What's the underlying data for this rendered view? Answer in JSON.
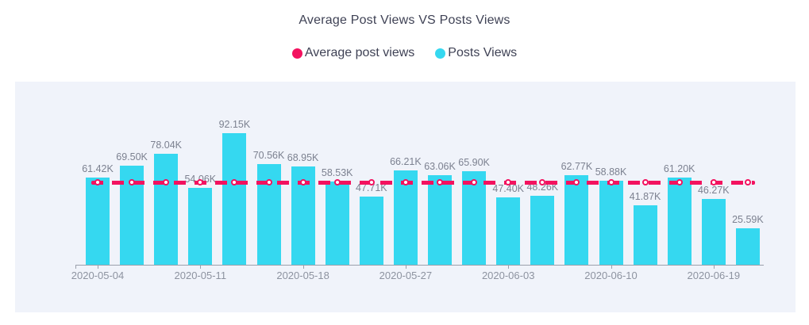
{
  "colors": {
    "bar": "#35d8f0",
    "average_line": "#f3125f",
    "panel_background": "#f0f3fa",
    "page_background": "#ffffff",
    "title_text": "#3f4255",
    "value_label_text": "#7c8190",
    "axis_label_text": "#8d93a0",
    "axis_line": "#9aa0ab"
  },
  "chart_data": {
    "type": "bar",
    "title": "Average Post Views VS Posts Views",
    "legend_position": "top-center",
    "grid": false,
    "legend": [
      {
        "name": "Average post views",
        "color": "#f3125f",
        "marker": "circle",
        "series_type": "line"
      },
      {
        "name": "Posts Views",
        "color": "#35d8f0",
        "marker": "circle",
        "series_type": "bar"
      }
    ],
    "x_axis": {
      "type": "category",
      "tick_labels": [
        "2020-05-04",
        "2020-05-11",
        "2020-05-18",
        "2020-05-27",
        "2020-06-03",
        "2020-06-10",
        "2020-06-19"
      ],
      "labeled_bar_indices": [
        0,
        3,
        6,
        9,
        12,
        15,
        18
      ]
    },
    "y_axis": {
      "visible": false,
      "unit": "K",
      "implied_max_k": 92.15
    },
    "series": [
      {
        "name": "Posts Views",
        "type": "bar",
        "color": "#35d8f0",
        "values_k": [
          61.42,
          69.5,
          78.04,
          54.06,
          92.15,
          70.56,
          68.95,
          58.53,
          47.71,
          66.21,
          63.06,
          65.9,
          47.4,
          48.26,
          62.77,
          58.88,
          41.87,
          61.2,
          46.27,
          25.59
        ],
        "data_labels": [
          "61.42K",
          "69.50K",
          "78.04K",
          "54.06K",
          "92.15K",
          "70.56K",
          "68.95K",
          "58.53K",
          "47.71K",
          "66.21K",
          "63.06K",
          "65.90K",
          "47.40K",
          "48.26K",
          "62.77K",
          "58.88K",
          "41.87K",
          "61.20K",
          "46.27K",
          "25.59K"
        ]
      },
      {
        "name": "Average post views",
        "type": "line",
        "line_style": "dashed",
        "marker": "hollow-circle",
        "color": "#f3125f",
        "constant_value_k_estimated": 57.7
      }
    ]
  }
}
